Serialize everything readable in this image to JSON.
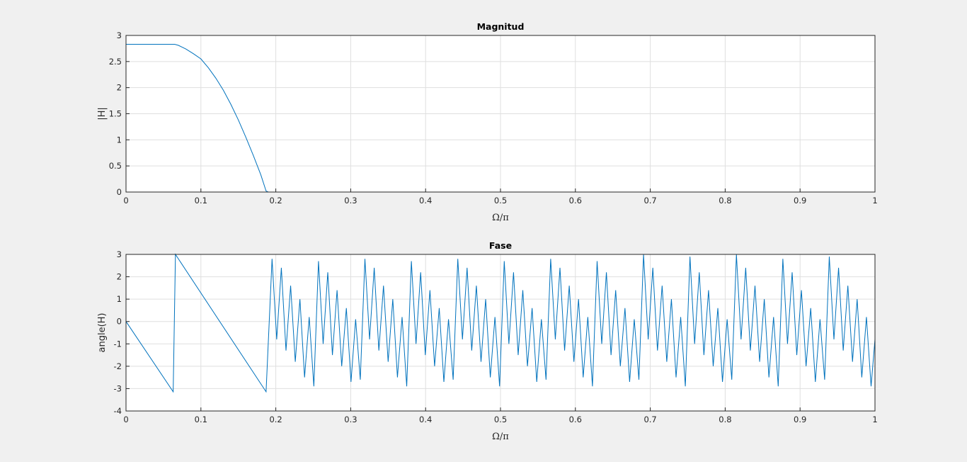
{
  "chart_data": [
    {
      "type": "line",
      "title": "Magnitud",
      "x_label": "Ω/π",
      "y_label": "|H|",
      "grid": true,
      "xlim": [
        0,
        1
      ],
      "xticks": [
        0,
        0.1,
        0.2,
        0.3,
        0.4,
        0.5,
        0.6,
        0.7,
        0.8,
        0.9,
        1
      ],
      "ylim": [
        0,
        3
      ],
      "yticks": [
        0,
        0.5,
        1,
        1.5,
        2,
        2.5,
        3
      ],
      "x": [
        0,
        0.06,
        0.065,
        0.07,
        0.08,
        0.09,
        0.1,
        0.11,
        0.12,
        0.13,
        0.14,
        0.15,
        0.16,
        0.17,
        0.18,
        0.187,
        0.19,
        1
      ],
      "series": [
        {
          "name": "|H|",
          "color": "#0072bd",
          "values": [
            2.83,
            2.83,
            2.83,
            2.81,
            2.74,
            2.65,
            2.55,
            2.38,
            2.18,
            1.95,
            1.68,
            1.38,
            1.05,
            0.7,
            0.33,
            0.02,
            0,
            0
          ]
        }
      ]
    },
    {
      "type": "line",
      "title": "Fase",
      "x_label": "Ω/π",
      "y_label": "angle(H)",
      "grid": true,
      "xlim": [
        0,
        1
      ],
      "xticks": [
        0,
        0.1,
        0.2,
        0.3,
        0.4,
        0.5,
        0.6,
        0.7,
        0.8,
        0.9,
        1
      ],
      "ylim": [
        -4,
        3
      ],
      "yticks": [
        -4,
        -3,
        -2,
        -1,
        0,
        1,
        2,
        3
      ],
      "x": [
        0,
        0.063,
        0.066,
        0.187,
        0.195,
        0.2012,
        0.2074,
        0.2136,
        0.2198,
        0.226,
        0.2322,
        0.2384,
        0.2446,
        0.2508,
        0.257,
        0.2632,
        0.2694,
        0.2756,
        0.2818,
        0.288,
        0.2942,
        0.3004,
        0.3066,
        0.3128,
        0.319,
        0.3252,
        0.3314,
        0.3376,
        0.3438,
        0.35,
        0.3562,
        0.3624,
        0.3686,
        0.3748,
        0.381,
        0.3872,
        0.3934,
        0.3996,
        0.4058,
        0.412,
        0.4182,
        0.4244,
        0.4306,
        0.4368,
        0.443,
        0.4492,
        0.4554,
        0.4616,
        0.4678,
        0.474,
        0.4802,
        0.4864,
        0.4926,
        0.4988,
        0.505,
        0.5112,
        0.5174,
        0.5236,
        0.5298,
        0.536,
        0.5422,
        0.5484,
        0.5546,
        0.5608,
        0.567,
        0.5732,
        0.5794,
        0.5856,
        0.5918,
        0.598,
        0.6042,
        0.6104,
        0.6166,
        0.6228,
        0.629,
        0.6352,
        0.6414,
        0.6476,
        0.6538,
        0.66,
        0.6662,
        0.6724,
        0.6786,
        0.6848,
        0.691,
        0.6972,
        0.7034,
        0.7096,
        0.7158,
        0.722,
        0.7282,
        0.7344,
        0.7406,
        0.7468,
        0.753,
        0.7592,
        0.7654,
        0.7716,
        0.7778,
        0.784,
        0.7902,
        0.7964,
        0.8026,
        0.8088,
        0.815,
        0.8212,
        0.8274,
        0.8336,
        0.8398,
        0.846,
        0.8522,
        0.8584,
        0.8646,
        0.8708,
        0.877,
        0.8832,
        0.8894,
        0.8956,
        0.9018,
        0.908,
        0.9142,
        0.9204,
        0.9266,
        0.9328,
        0.939,
        0.9452,
        0.9514,
        0.9576,
        0.9638,
        0.97,
        0.9762,
        0.9824,
        0.9886,
        0.9948,
        1
      ],
      "series": [
        {
          "name": "angle(H)",
          "color": "#0072bd",
          "values": [
            0,
            -3.14,
            3,
            -3.14,
            2.8,
            -0.8,
            2.4,
            -1.3,
            1.6,
            -1.8,
            1.0,
            -2.5,
            0.2,
            -2.9,
            2.7,
            -1.0,
            2.2,
            -1.5,
            1.4,
            -2.0,
            0.6,
            -2.7,
            0.1,
            -2.6,
            2.8,
            -0.8,
            2.4,
            -1.3,
            1.6,
            -1.8,
            1.0,
            -2.5,
            0.2,
            -2.9,
            2.7,
            -1.0,
            2.2,
            -1.5,
            1.4,
            -2.0,
            0.6,
            -2.7,
            0.1,
            -2.6,
            2.8,
            -0.8,
            2.4,
            -1.3,
            1.6,
            -1.8,
            1.0,
            -2.5,
            0.2,
            -2.9,
            2.7,
            -1.0,
            2.2,
            -1.5,
            1.4,
            -2.0,
            0.6,
            -2.7,
            0.1,
            -2.6,
            2.8,
            -0.8,
            2.4,
            -1.3,
            1.6,
            -1.8,
            1.0,
            -2.5,
            0.2,
            -2.9,
            2.7,
            -1.0,
            2.2,
            -1.5,
            1.4,
            -2.0,
            0.6,
            -2.7,
            0.1,
            -2.6,
            3.0,
            -0.8,
            2.4,
            -1.3,
            1.6,
            -1.8,
            1.0,
            -2.5,
            0.2,
            -2.9,
            2.9,
            -1.0,
            2.2,
            -1.5,
            1.4,
            -2.0,
            0.6,
            -2.7,
            0.1,
            -2.6,
            3.0,
            -0.8,
            2.4,
            -1.3,
            1.6,
            -1.8,
            1.0,
            -2.5,
            0.2,
            -2.9,
            2.8,
            -1.0,
            2.2,
            -1.5,
            1.4,
            -2.0,
            0.6,
            -2.7,
            0.1,
            -2.6,
            2.9,
            -0.8,
            2.4,
            -1.3,
            1.6,
            -1.8,
            1.0,
            -2.5,
            0.2,
            -2.9,
            -0.8
          ]
        }
      ]
    }
  ]
}
